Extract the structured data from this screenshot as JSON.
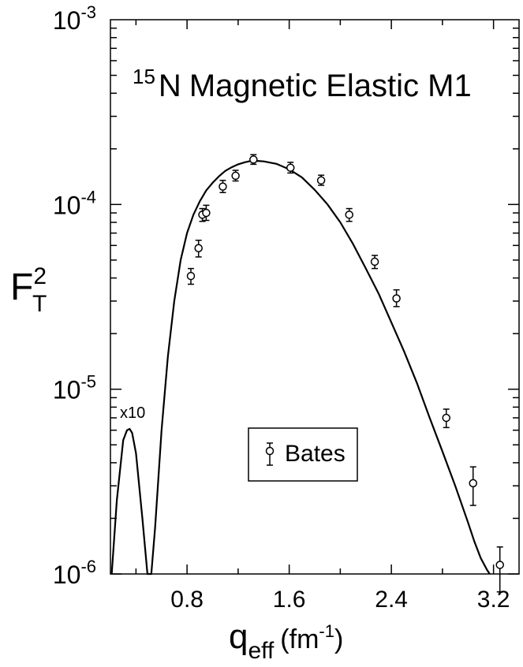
{
  "chart_data": {
    "type": "scatter",
    "title": "Magnetic Elastic M1",
    "title_prefix_sup": "15",
    "title_prefix": "N",
    "ylabel_main": "F",
    "ylabel_sup": "2",
    "ylabel_sub": "T",
    "xlabel_main": "q",
    "xlabel_sub": "eff",
    "xlabel_unit": "(fm",
    "xlabel_unit_sup": "-1",
    "xlabel_unit_close": ")",
    "x_scale": "linear",
    "y_scale": "log",
    "xlim": [
      0.2,
      3.4
    ],
    "ylim": [
      1e-06,
      0.001
    ],
    "x_ticks": [
      {
        "value": 0.8,
        "label": "0.8"
      },
      {
        "value": 1.6,
        "label": "1.6"
      },
      {
        "value": 2.4,
        "label": "2.4"
      },
      {
        "value": 3.2,
        "label": "3.2"
      }
    ],
    "y_ticks": [
      {
        "value": 1e-06,
        "base": "10",
        "exp": "-6"
      },
      {
        "value": 1e-05,
        "base": "10",
        "exp": "-5"
      },
      {
        "value": 0.0001,
        "base": "10",
        "exp": "-4"
      },
      {
        "value": 0.001,
        "base": "10",
        "exp": "-3"
      }
    ],
    "grid": false,
    "legend": {
      "placement": "lower-center",
      "entries": [
        "Bates"
      ]
    },
    "annotation": {
      "text": "x10",
      "x": 0.35,
      "y": 6.8e-06
    },
    "series": [
      {
        "name": "Bates",
        "kind": "points",
        "points": [
          {
            "x": 0.83,
            "y": 4.1e-05,
            "err": [
              3.7e-05,
              4.5e-05
            ]
          },
          {
            "x": 0.89,
            "y": 5.8e-05,
            "err": [
              5.2e-05,
              6.4e-05
            ]
          },
          {
            "x": 0.92,
            "y": 8.8e-05,
            "err": [
              8.1e-05,
              9.5e-05
            ]
          },
          {
            "x": 0.95,
            "y": 9e-05,
            "err": [
              8.2e-05,
              9.9e-05
            ]
          },
          {
            "x": 1.08,
            "y": 0.000125,
            "err": [
              0.000116,
              0.000135
            ]
          },
          {
            "x": 1.18,
            "y": 0.000143,
            "err": [
              0.000134,
              0.000153
            ]
          },
          {
            "x": 1.32,
            "y": 0.000175,
            "err": [
              0.000165,
              0.000186
            ]
          },
          {
            "x": 1.61,
            "y": 0.000158,
            "err": [
              0.000148,
              0.000169
            ]
          },
          {
            "x": 1.85,
            "y": 0.000135,
            "err": [
              0.000127,
              0.000144
            ]
          },
          {
            "x": 2.07,
            "y": 8.8e-05,
            "err": [
              8.1e-05,
              9.5e-05
            ]
          },
          {
            "x": 2.27,
            "y": 4.9e-05,
            "err": [
              4.5e-05,
              5.3e-05
            ]
          },
          {
            "x": 2.44,
            "y": 3.1e-05,
            "err": [
              2.8e-05,
              3.45e-05
            ]
          },
          {
            "x": 2.83,
            "y": 7e-06,
            "err": [
              6.2e-06,
              7.8e-06
            ]
          },
          {
            "x": 3.04,
            "y": 3.1e-06,
            "err": [
              2.35e-06,
              3.8e-06
            ]
          },
          {
            "x": 3.25,
            "y": 1.12e-06,
            "err": [
              8e-07,
              1.4e-06
            ]
          }
        ]
      },
      {
        "kind": "curve",
        "x": [
          0.21,
          0.25,
          0.3,
          0.33,
          0.35,
          0.37,
          0.4,
          0.45,
          0.49,
          0.52,
          0.55,
          0.6,
          0.65,
          0.7,
          0.75,
          0.8,
          0.85,
          0.9,
          0.95,
          1.0,
          1.05,
          1.1,
          1.15,
          1.2,
          1.25,
          1.3,
          1.35,
          1.4,
          1.5,
          1.6,
          1.7,
          1.8,
          1.9,
          2.0,
          2.1,
          2.2,
          2.3,
          2.4,
          2.5,
          2.6,
          2.7,
          2.8,
          2.9,
          3.0,
          3.05,
          3.1,
          3.15,
          3.17
        ],
        "y": [
          1e-06,
          2.5e-06,
          5.3e-06,
          6e-06,
          6.1e-06,
          5.8e-06,
          4.5e-06,
          2e-06,
          1e-06,
          1e-06,
          1.8e-06,
          6e-06,
          1.5e-05,
          3e-05,
          5e-05,
          7e-05,
          8.8e-05,
          0.000104,
          0.000119,
          0.000131,
          0.000142,
          0.000152,
          0.000159,
          0.000165,
          0.000169,
          0.000172,
          0.000172,
          0.000171,
          0.000166,
          0.000155,
          0.00014,
          0.00012,
          0.0001,
          8e-05,
          6.1e-05,
          4.5e-05,
          3.3e-05,
          2.3e-05,
          1.6e-05,
          1.08e-05,
          7e-06,
          4.6e-06,
          3e-06,
          1.9e-06,
          1.5e-06,
          1.22e-06,
          1.05e-06,
          1e-06
        ]
      }
    ]
  }
}
